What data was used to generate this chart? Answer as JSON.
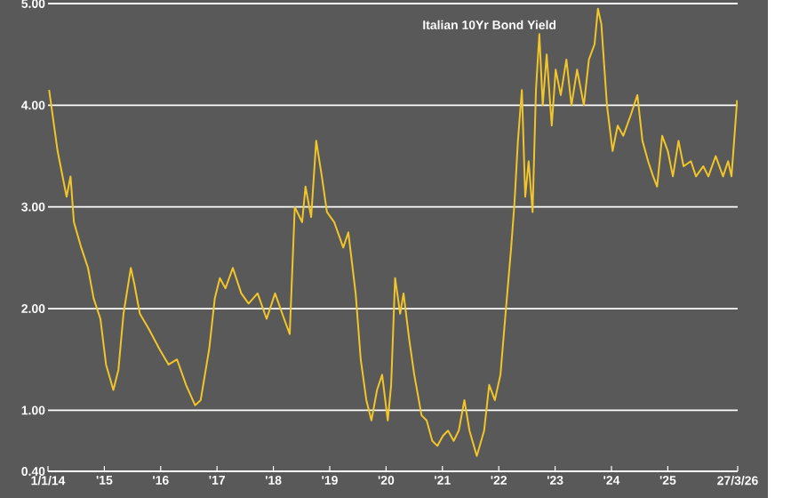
{
  "chart_data": {
    "type": "line",
    "title": "Italian 10Yr Bond Yield",
    "x": [
      2014.02,
      2014.17,
      2014.33,
      2014.4,
      2014.46,
      2014.59,
      2014.71,
      2014.81,
      2014.93,
      2015.03,
      2015.16,
      2015.25,
      2015.34,
      2015.47,
      2015.53,
      2015.63,
      2015.79,
      2015.98,
      2016.14,
      2016.29,
      2016.45,
      2016.61,
      2016.71,
      2016.86,
      2016.96,
      2017.05,
      2017.15,
      2017.28,
      2017.43,
      2017.56,
      2017.72,
      2017.88,
      2018.03,
      2018.19,
      2018.29,
      2018.38,
      2018.51,
      2018.57,
      2018.67,
      2018.76,
      2018.86,
      2018.95,
      2019.08,
      2019.24,
      2019.33,
      2019.46,
      2019.55,
      2019.65,
      2019.74,
      2019.84,
      2019.93,
      2020.03,
      2020.09,
      2020.16,
      2020.25,
      2020.31,
      2020.41,
      2020.5,
      2020.63,
      2020.72,
      2020.82,
      2020.91,
      2021.01,
      2021.1,
      2021.2,
      2021.29,
      2021.39,
      2021.48,
      2021.61,
      2021.74,
      2021.83,
      2021.93,
      2022.03,
      2022.12,
      2022.22,
      2022.28,
      2022.34,
      2022.41,
      2022.47,
      2022.53,
      2022.6,
      2022.66,
      2022.72,
      2022.78,
      2022.85,
      2022.94,
      2023.01,
      2023.1,
      2023.2,
      2023.29,
      2023.39,
      2023.51,
      2023.6,
      2023.7,
      2023.76,
      2023.82,
      2023.92,
      2024.02,
      2024.11,
      2024.21,
      2024.34,
      2024.46,
      2024.55,
      2024.65,
      2024.74,
      2024.81,
      2024.9,
      2025.0,
      2025.09,
      2025.19,
      2025.28,
      2025.41,
      2025.5,
      2025.63,
      2025.72,
      2025.85,
      2025.98,
      2026.07,
      2026.13,
      2026.23
    ],
    "series": [
      {
        "color": "#f2c629",
        "values": [
          4.15,
          3.55,
          3.1,
          3.3,
          2.85,
          2.6,
          2.4,
          2.1,
          1.9,
          1.45,
          1.2,
          1.4,
          1.95,
          2.4,
          2.25,
          1.95,
          1.8,
          1.6,
          1.45,
          1.5,
          1.25,
          1.05,
          1.1,
          1.6,
          2.1,
          2.3,
          2.2,
          2.4,
          2.15,
          2.05,
          2.15,
          1.9,
          2.15,
          1.9,
          1.75,
          3.0,
          2.85,
          3.2,
          2.9,
          3.65,
          3.3,
          2.95,
          2.85,
          2.6,
          2.75,
          2.15,
          1.5,
          1.1,
          0.9,
          1.2,
          1.35,
          0.9,
          1.25,
          2.3,
          1.95,
          2.15,
          1.7,
          1.35,
          0.95,
          0.9,
          0.7,
          0.65,
          0.75,
          0.8,
          0.7,
          0.8,
          1.1,
          0.8,
          0.55,
          0.8,
          1.25,
          1.1,
          1.35,
          1.95,
          2.6,
          3.05,
          3.65,
          4.15,
          3.1,
          3.45,
          2.95,
          4.15,
          4.7,
          4.0,
          4.5,
          3.8,
          4.35,
          4.1,
          4.45,
          4.0,
          4.35,
          4.0,
          4.45,
          4.6,
          4.95,
          4.8,
          4.0,
          3.55,
          3.8,
          3.7,
          3.9,
          4.1,
          3.65,
          3.45,
          3.3,
          3.2,
          3.7,
          3.55,
          3.3,
          3.65,
          3.4,
          3.45,
          3.3,
          3.4,
          3.3,
          3.5,
          3.3,
          3.45,
          3.3,
          4.05
        ]
      }
    ],
    "xlim": [
      2014,
      2026.24
    ],
    "xticks": [
      {
        "value": 2014,
        "label": "1/1/14"
      },
      {
        "value": 2015,
        "label": "'15"
      },
      {
        "value": 2016,
        "label": "'16"
      },
      {
        "value": 2017,
        "label": "'17"
      },
      {
        "value": 2018,
        "label": "'18"
      },
      {
        "value": 2019,
        "label": "'19"
      },
      {
        "value": 2020,
        "label": "'20"
      },
      {
        "value": 2021,
        "label": "'21"
      },
      {
        "value": 2022,
        "label": "'22"
      },
      {
        "value": 2023,
        "label": "'23"
      },
      {
        "value": 2024,
        "label": "'24"
      },
      {
        "value": 2025,
        "label": "'25"
      },
      {
        "value": 2026.24,
        "label": "27/3/26"
      }
    ],
    "ylim": [
      0.4,
      5.0
    ],
    "yticks": [
      {
        "value": 0.4,
        "label": "0.40"
      },
      {
        "value": 1,
        "label": "1.00"
      },
      {
        "value": 2,
        "label": "2.00"
      },
      {
        "value": 3,
        "label": "3.00"
      },
      {
        "value": 4,
        "label": "4.00"
      },
      {
        "value": 5,
        "label": "5.00"
      }
    ],
    "grid": "y"
  }
}
